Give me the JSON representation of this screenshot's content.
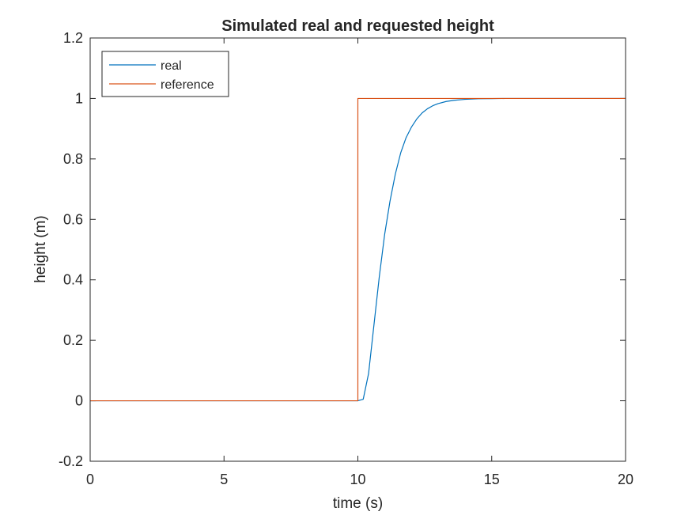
{
  "chart_data": {
    "type": "line",
    "title": "Simulated real and requested height",
    "xlabel": "time (s)",
    "ylabel": "height (m)",
    "xlim": [
      0,
      20
    ],
    "ylim": [
      -0.2,
      1.2
    ],
    "xticks": [
      "0",
      "5",
      "10",
      "15",
      "20"
    ],
    "yticks": [
      "-0.2",
      "0",
      "0.2",
      "0.4",
      "0.6",
      "0.8",
      "1",
      "1.2"
    ],
    "grid": false,
    "legend_position": "top-left",
    "series": [
      {
        "name": "real",
        "color": "#0072bd",
        "x": [
          0,
          10,
          10.2,
          10.4,
          10.6,
          10.8,
          11.0,
          11.2,
          11.4,
          11.6,
          11.8,
          12.0,
          12.2,
          12.4,
          12.6,
          12.8,
          13.0,
          13.3,
          13.6,
          14.0,
          14.5,
          15.0,
          15.5,
          16.0,
          17.0,
          18.0,
          20.0
        ],
        "y": [
          0,
          0,
          0.005,
          0.09,
          0.25,
          0.41,
          0.55,
          0.66,
          0.75,
          0.82,
          0.87,
          0.905,
          0.932,
          0.952,
          0.966,
          0.976,
          0.983,
          0.99,
          0.994,
          0.997,
          0.999,
          0.9995,
          1.0,
          1.0,
          1.0,
          1.0,
          1.0
        ]
      },
      {
        "name": "reference",
        "color": "#d95319",
        "x": [
          0,
          10,
          10,
          20
        ],
        "y": [
          0,
          0,
          1,
          1
        ]
      }
    ]
  }
}
